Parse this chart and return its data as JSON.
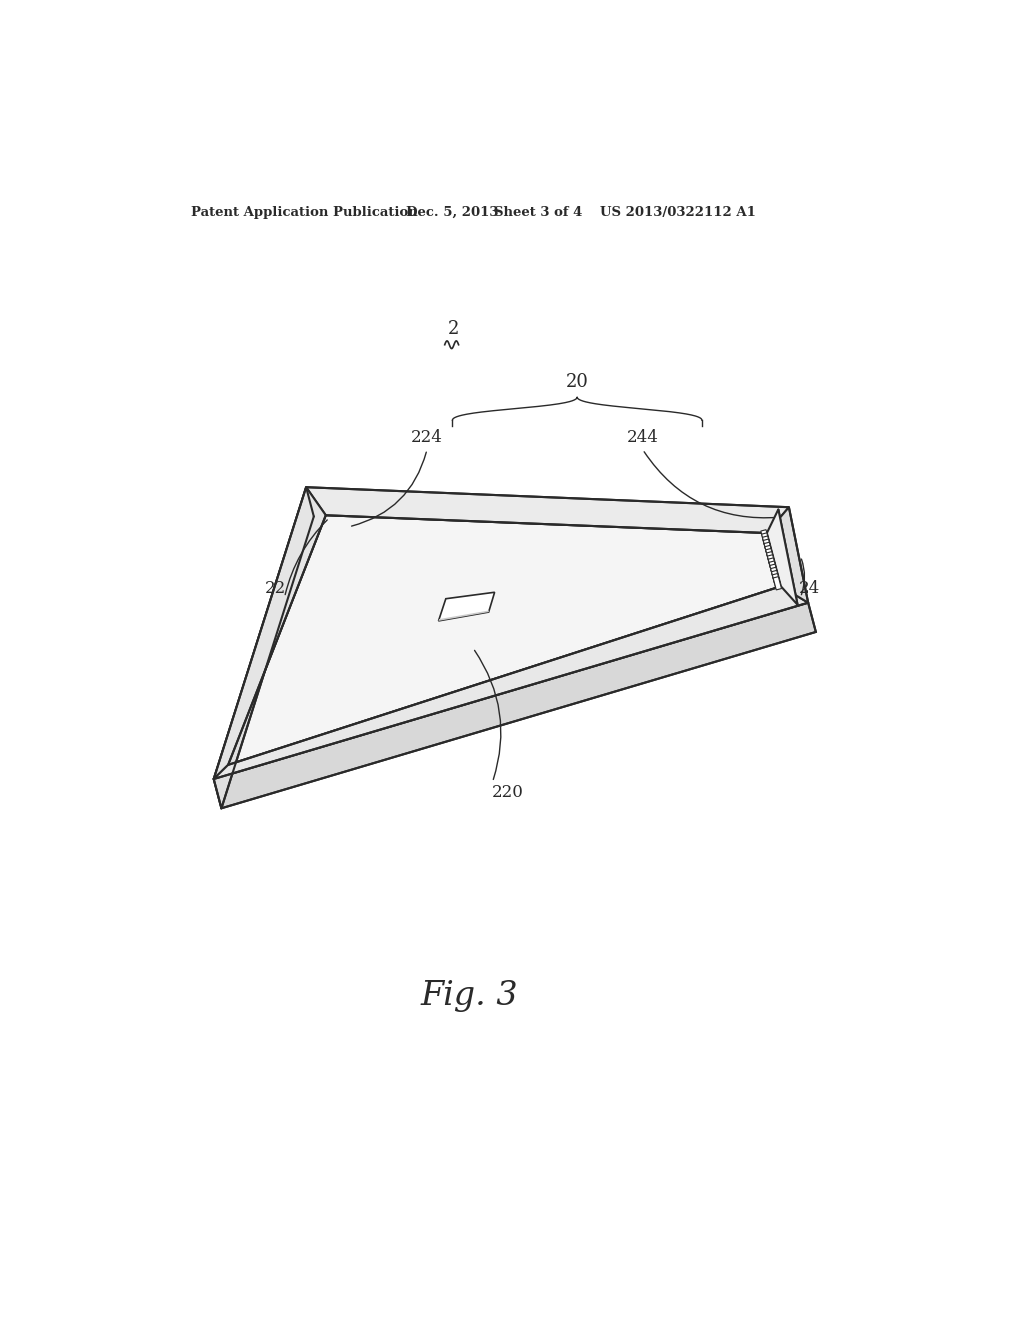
{
  "bg_color": "#ffffff",
  "line_color": "#2a2a2a",
  "header_text": "Patent Application Publication",
  "header_date": "Dec. 5, 2013",
  "header_sheet": "Sheet 3 of 4",
  "header_patent": "US 2013/0322112 A1",
  "fig_label": "Fig. 3",
  "label_2": "2",
  "label_20": "20",
  "label_22": "22",
  "label_24": "24",
  "label_220": "220",
  "label_224": "224",
  "label_244": "244",
  "n_leds": 16
}
